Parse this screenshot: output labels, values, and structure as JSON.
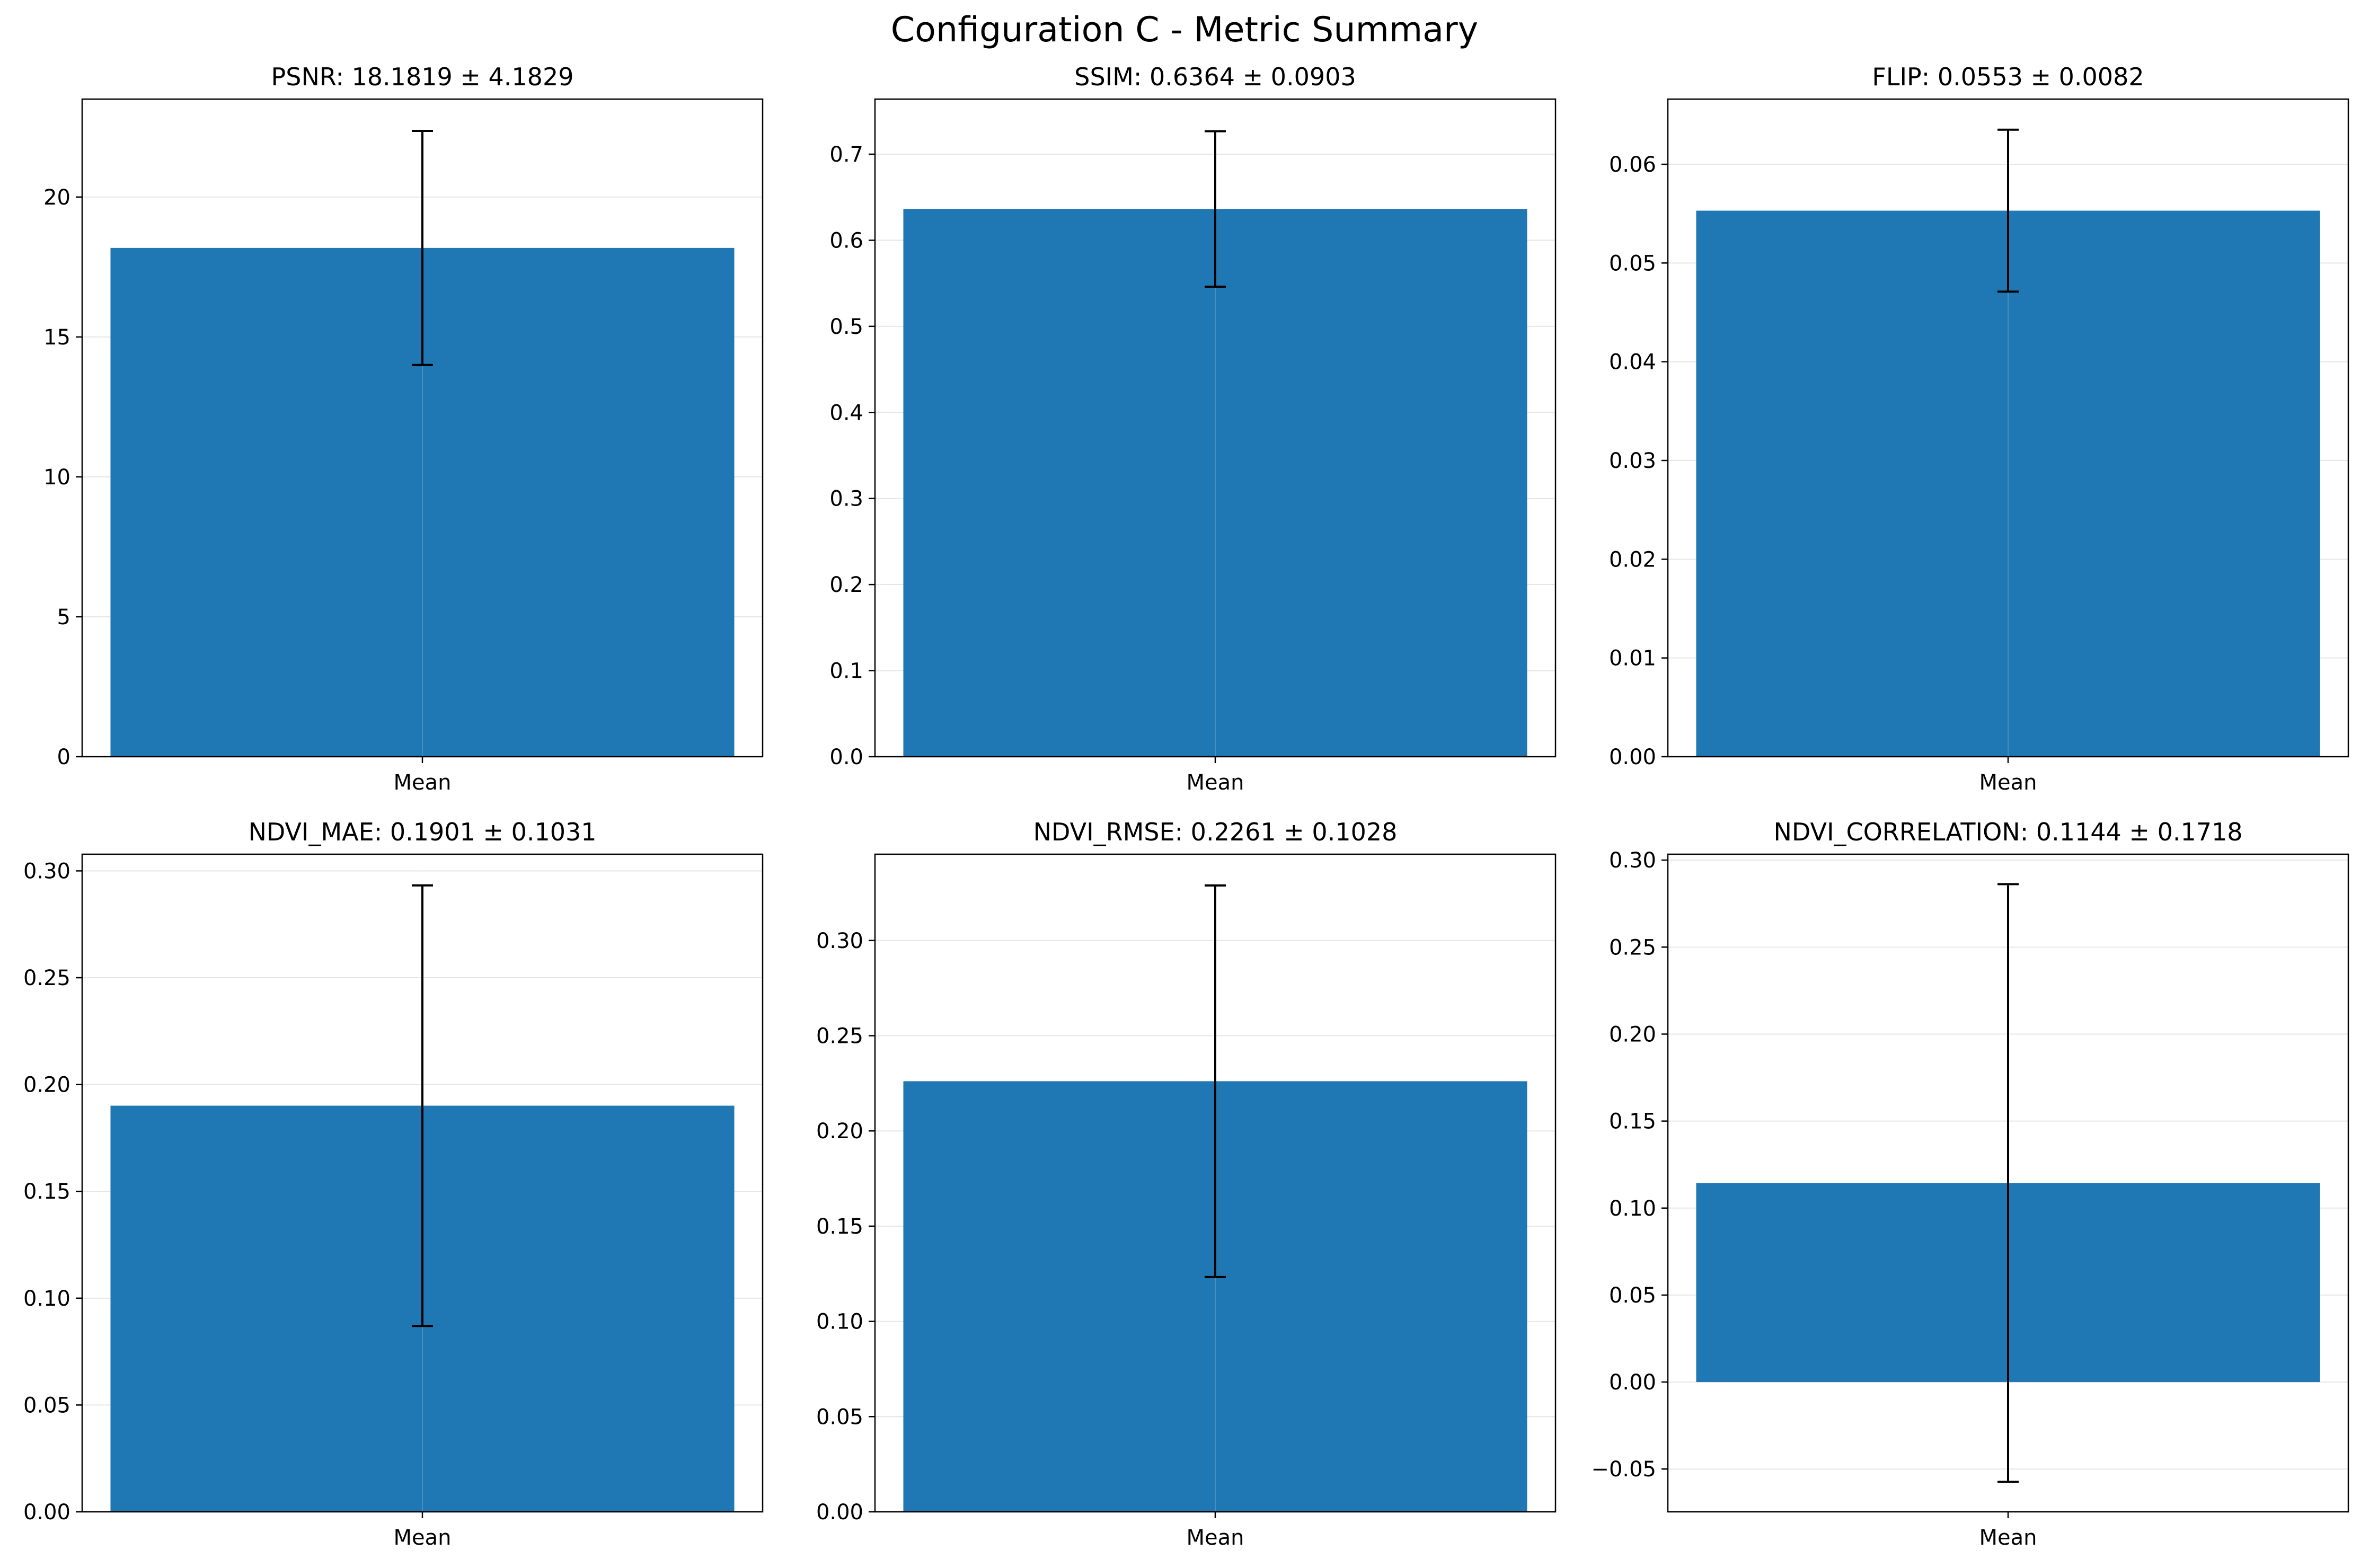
{
  "figure": {
    "title": "Configuration C - Metric Summary"
  },
  "colors": {
    "bar": "#1f77b4",
    "error_bar": "#000000",
    "grid": "#e6e6e6",
    "axes": "#000000"
  },
  "chart_data": [
    {
      "type": "bar",
      "title": "PSNR: 18.1819 ± 4.1829",
      "categories": [
        "Mean"
      ],
      "values": [
        18.1819
      ],
      "errors": [
        4.1829
      ],
      "ylim": [
        0,
        23.5
      ],
      "yticks": [
        0,
        5,
        10,
        15,
        20
      ],
      "ytick_labels": [
        "0",
        "5",
        "10",
        "15",
        "20"
      ],
      "xlabel": "",
      "ylabel": "",
      "grid": true
    },
    {
      "type": "bar",
      "title": "SSIM: 0.6364 ± 0.0903",
      "categories": [
        "Mean"
      ],
      "values": [
        0.6364
      ],
      "errors": [
        0.0903
      ],
      "ylim": [
        0,
        0.764
      ],
      "yticks": [
        0,
        0.1,
        0.2,
        0.3,
        0.4,
        0.5,
        0.6,
        0.7
      ],
      "ytick_labels": [
        "0.0",
        "0.1",
        "0.2",
        "0.3",
        "0.4",
        "0.5",
        "0.6",
        "0.7"
      ],
      "xlabel": "",
      "ylabel": "",
      "grid": true
    },
    {
      "type": "bar",
      "title": "FLIP: 0.0553 ± 0.0082",
      "categories": [
        "Mean"
      ],
      "values": [
        0.0553
      ],
      "errors": [
        0.0082
      ],
      "ylim": [
        0,
        0.0666
      ],
      "yticks": [
        0,
        0.01,
        0.02,
        0.03,
        0.04,
        0.05,
        0.06
      ],
      "ytick_labels": [
        "0.00",
        "0.01",
        "0.02",
        "0.03",
        "0.04",
        "0.05",
        "0.06"
      ],
      "xlabel": "",
      "ylabel": "",
      "grid": true
    },
    {
      "type": "bar",
      "title": "NDVI_MAE: 0.1901 ± 0.1031",
      "categories": [
        "Mean"
      ],
      "values": [
        0.1901
      ],
      "errors": [
        0.1031
      ],
      "ylim": [
        0,
        0.3078
      ],
      "yticks": [
        0,
        0.05,
        0.1,
        0.15,
        0.2,
        0.25,
        0.3
      ],
      "ytick_labels": [
        "0.00",
        "0.05",
        "0.10",
        "0.15",
        "0.20",
        "0.25",
        "0.30"
      ],
      "xlabel": "",
      "ylabel": "",
      "grid": true
    },
    {
      "type": "bar",
      "title": "NDVI_RMSE: 0.2261 ± 0.1028",
      "categories": [
        "Mean"
      ],
      "values": [
        0.2261
      ],
      "errors": [
        0.1028
      ],
      "ylim": [
        0,
        0.3453
      ],
      "yticks": [
        0,
        0.05,
        0.1,
        0.15,
        0.2,
        0.25,
        0.3
      ],
      "ytick_labels": [
        "0.00",
        "0.05",
        "0.10",
        "0.15",
        "0.20",
        "0.25",
        "0.30"
      ],
      "xlabel": "",
      "ylabel": "",
      "grid": true
    },
    {
      "type": "bar",
      "title": "NDVI_CORRELATION: 0.1144 ± 0.1718",
      "categories": [
        "Mean"
      ],
      "values": [
        0.1144
      ],
      "errors": [
        0.1718
      ],
      "ylim": [
        -0.0746,
        0.3034
      ],
      "yticks": [
        -0.05,
        0,
        0.05,
        0.1,
        0.15,
        0.2,
        0.25,
        0.3
      ],
      "ytick_labels": [
        "−0.05",
        "0.00",
        "0.05",
        "0.10",
        "0.15",
        "0.20",
        "0.25",
        "0.30"
      ],
      "xlabel": "",
      "ylabel": "",
      "grid": true
    }
  ]
}
